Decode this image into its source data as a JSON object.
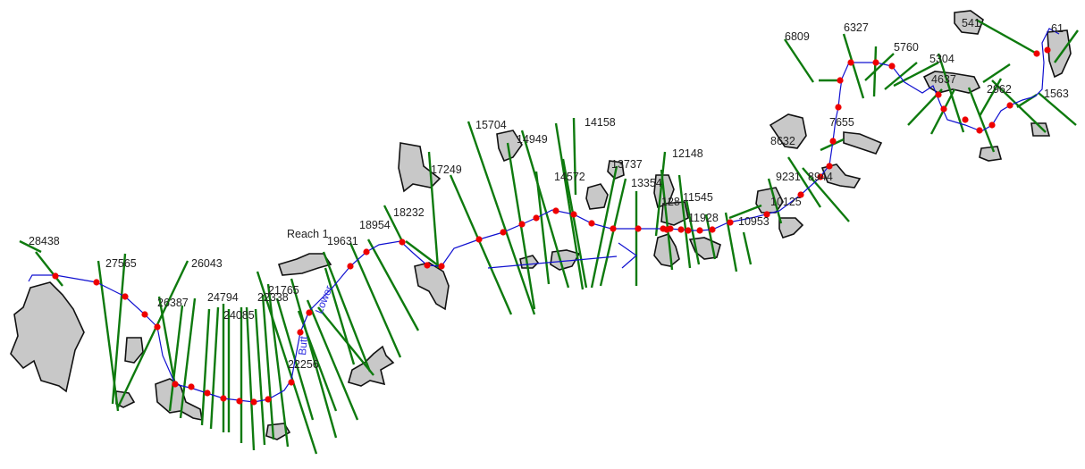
{
  "map": {
    "colors": {
      "background": "#ffffff",
      "river": "#1010d0",
      "cross_section": "#0e7a0e",
      "node": "#ee0000",
      "polygon_fill": "#c8c8c8",
      "polygon_stroke": "#111111",
      "label": "#222222",
      "river_label": "#2a2ae0"
    },
    "reach_label": "Reach 1",
    "river_name_parts": [
      "Lower",
      "Butt"
    ],
    "station_labels": [
      "28438",
      "27565",
      "26043",
      "26387",
      "24794",
      "22338",
      "21765",
      "24085",
      "22256",
      "19631",
      "18954",
      "18232",
      "17249",
      "15704",
      "14949",
      "14158",
      "14572",
      "13737",
      "13354",
      "128",
      "11545",
      "11928",
      "12148",
      "10953",
      "10125",
      "9231",
      "8944",
      "8632",
      "7655",
      "6809",
      "6327",
      "5760",
      "5304",
      "4637",
      "2962",
      "1563",
      "541",
      "61"
    ]
  }
}
